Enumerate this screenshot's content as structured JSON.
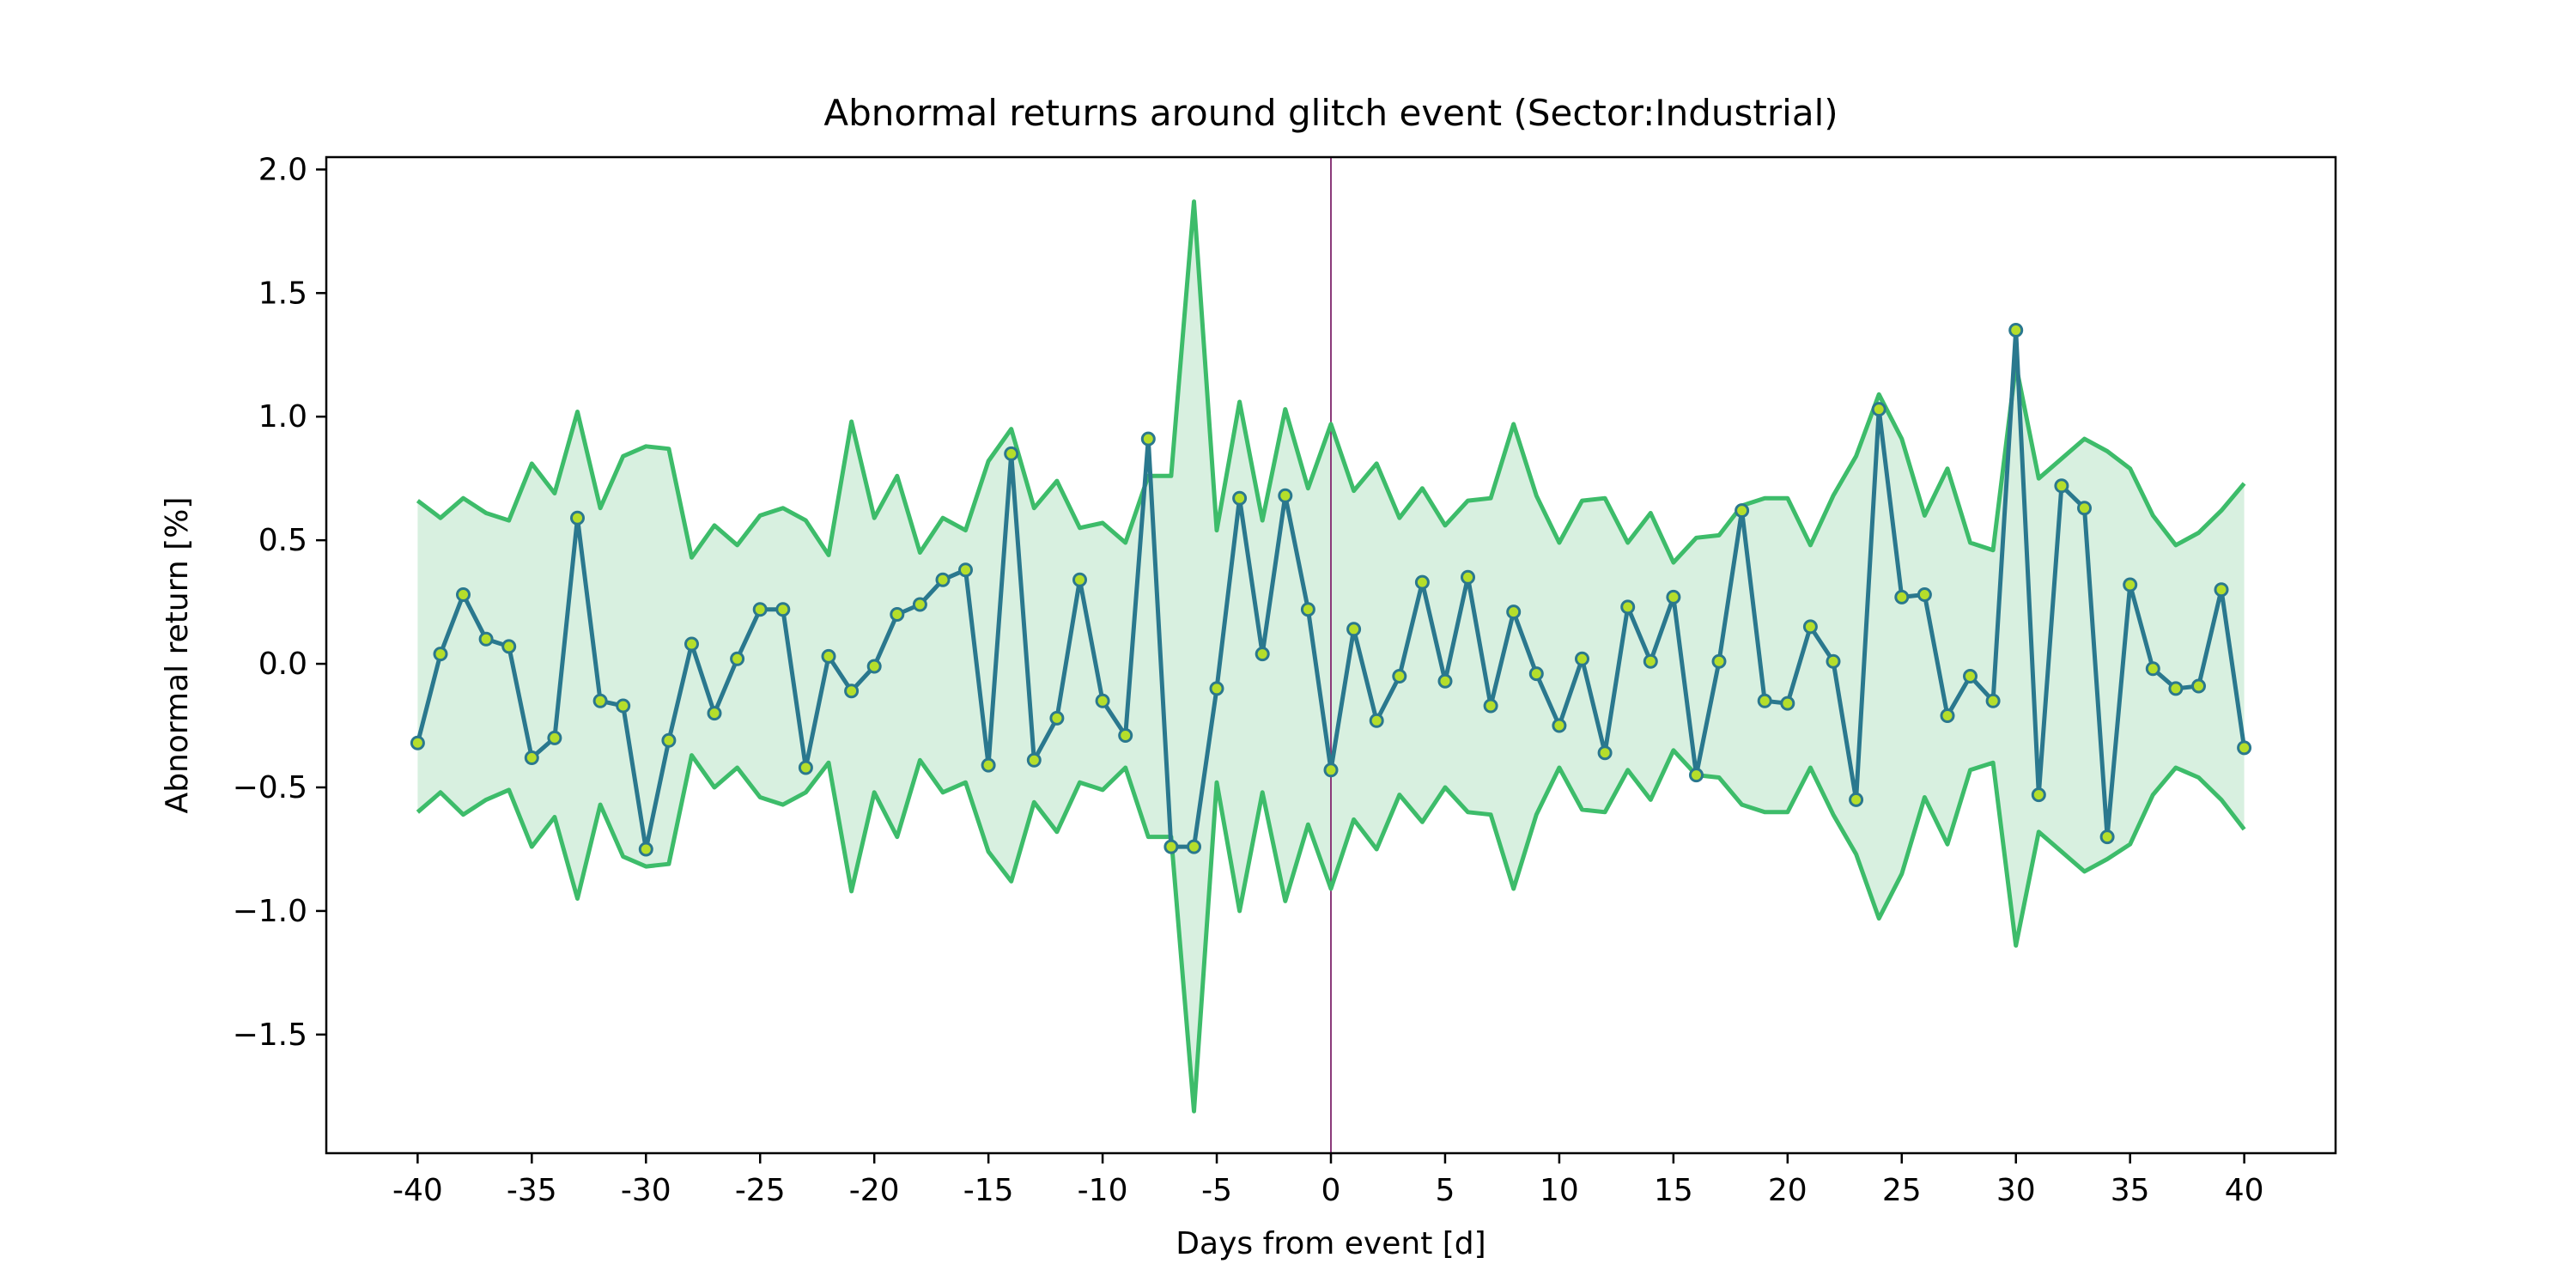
{
  "chart_data": {
    "type": "line",
    "title": "Abnormal returns around glitch event (Sector:Industrial)",
    "xlabel": "Days from event [d]",
    "ylabel": "Abnormal return [%]",
    "xlim": [
      -44,
      44
    ],
    "ylim": [
      -1.98,
      2.05
    ],
    "x_ticks": [
      -40,
      -35,
      -30,
      -25,
      -20,
      -15,
      -10,
      -5,
      0,
      5,
      10,
      15,
      20,
      25,
      30,
      35,
      40
    ],
    "x_tick_labels": [
      "-40",
      "-35",
      "-30",
      "-25",
      "-20",
      "-15",
      "-10",
      "-5",
      "0",
      "5",
      "10",
      "15",
      "20",
      "25",
      "30",
      "35",
      "40"
    ],
    "y_ticks": [
      -1.5,
      -1.0,
      -0.5,
      0.0,
      0.5,
      1.0,
      1.5,
      2.0
    ],
    "y_tick_labels": [
      "−1.5",
      "−1.0",
      "−0.5",
      "0.0",
      "0.5",
      "1.0",
      "1.5",
      "2.0"
    ],
    "event_line_x": 0,
    "grid": false,
    "legend": "none",
    "colors": {
      "mean_line": "#2a788e",
      "marker_face": "#b5de2b",
      "band_line": "#3dbc6a",
      "band_fill": "#d8f0e0",
      "event_line": "#8b3a7a"
    },
    "x": [
      -40,
      -39,
      -38,
      -37,
      -36,
      -35,
      -34,
      -33,
      -32,
      -31,
      -30,
      -29,
      -28,
      -27,
      -26,
      -25,
      -24,
      -23,
      -22,
      -21,
      -20,
      -19,
      -18,
      -17,
      -16,
      -15,
      -14,
      -13,
      -12,
      -11,
      -10,
      -9,
      -8,
      -7,
      -6,
      -5,
      -4,
      -3,
      -2,
      -1,
      0,
      1,
      2,
      3,
      4,
      5,
      6,
      7,
      8,
      9,
      10,
      11,
      12,
      13,
      14,
      15,
      16,
      17,
      18,
      19,
      20,
      21,
      22,
      23,
      24,
      25,
      26,
      27,
      28,
      29,
      30,
      31,
      32,
      33,
      34,
      35,
      36,
      37,
      38,
      39,
      40
    ],
    "series": [
      {
        "values": [
          -0.32,
          0.04,
          0.28,
          0.1,
          0.07,
          -0.38,
          -0.3,
          0.59,
          -0.15,
          -0.17,
          -0.75,
          -0.31,
          0.08,
          -0.2,
          0.02,
          0.22,
          0.22,
          -0.42,
          0.03,
          -0.11,
          -0.01,
          0.2,
          0.24,
          0.34,
          0.38,
          -0.41,
          0.85,
          -0.39,
          -0.22,
          0.34,
          -0.15,
          -0.29,
          0.91,
          -0.74,
          -0.74,
          -0.1,
          0.67,
          0.04,
          0.68,
          0.22,
          -0.43,
          0.14,
          -0.23,
          -0.05,
          0.33,
          -0.07,
          0.35,
          -0.17,
          0.21,
          -0.04,
          -0.25,
          0.02,
          -0.36,
          0.23,
          0.01,
          0.27,
          -0.45,
          0.01,
          0.62,
          -0.15,
          -0.16,
          0.15,
          0.01,
          -0.55,
          1.03,
          0.27,
          0.28,
          -0.21,
          -0.05,
          -0.15,
          1.35,
          -0.53,
          0.72,
          0.63,
          -0.7,
          0.32,
          -0.02,
          -0.1,
          -0.09,
          0.3,
          -0.34
        ]
      },
      {
        "values": [
          0.66,
          0.59,
          0.67,
          0.61,
          0.58,
          0.81,
          0.69,
          1.02,
          0.63,
          0.84,
          0.88,
          0.87,
          0.43,
          0.56,
          0.48,
          0.6,
          0.63,
          0.58,
          0.44,
          0.98,
          0.59,
          0.76,
          0.45,
          0.59,
          0.54,
          0.82,
          0.95,
          0.63,
          0.74,
          0.55,
          0.57,
          0.49,
          0.76,
          0.76,
          1.87,
          0.54,
          1.06,
          0.58,
          1.03,
          0.71,
          0.97,
          0.7,
          0.81,
          0.59,
          0.71,
          0.56,
          0.66,
          0.67,
          0.97,
          0.68,
          0.49,
          0.66,
          0.67,
          0.49,
          0.61,
          0.41,
          0.51,
          0.52,
          0.64,
          0.67,
          0.67,
          0.48,
          0.68,
          0.84,
          1.09,
          0.91,
          0.6,
          0.79,
          0.49,
          0.46,
          1.21,
          0.75,
          0.83,
          0.91,
          0.86,
          0.79,
          0.6,
          0.48,
          0.53,
          0.62,
          0.73
        ]
      },
      {
        "values": [
          -0.6,
          -0.52,
          -0.61,
          -0.55,
          -0.51,
          -0.74,
          -0.62,
          -0.95,
          -0.57,
          -0.78,
          -0.82,
          -0.81,
          -0.37,
          -0.5,
          -0.42,
          -0.54,
          -0.57,
          -0.52,
          -0.4,
          -0.92,
          -0.52,
          -0.7,
          -0.39,
          -0.52,
          -0.48,
          -0.76,
          -0.88,
          -0.56,
          -0.68,
          -0.48,
          -0.51,
          -0.42,
          -0.7,
          -0.7,
          -1.81,
          -0.48,
          -1.0,
          -0.52,
          -0.96,
          -0.65,
          -0.91,
          -0.63,
          -0.75,
          -0.53,
          -0.64,
          -0.5,
          -0.6,
          -0.61,
          -0.91,
          -0.61,
          -0.42,
          -0.59,
          -0.6,
          -0.43,
          -0.55,
          -0.35,
          -0.45,
          -0.46,
          -0.57,
          -0.6,
          -0.6,
          -0.42,
          -0.61,
          -0.77,
          -1.03,
          -0.85,
          -0.54,
          -0.73,
          -0.43,
          -0.4,
          -1.14,
          -0.68,
          -0.76,
          -0.84,
          -0.79,
          -0.73,
          -0.53,
          -0.42,
          -0.46,
          -0.55,
          -0.67
        ]
      }
    ]
  }
}
